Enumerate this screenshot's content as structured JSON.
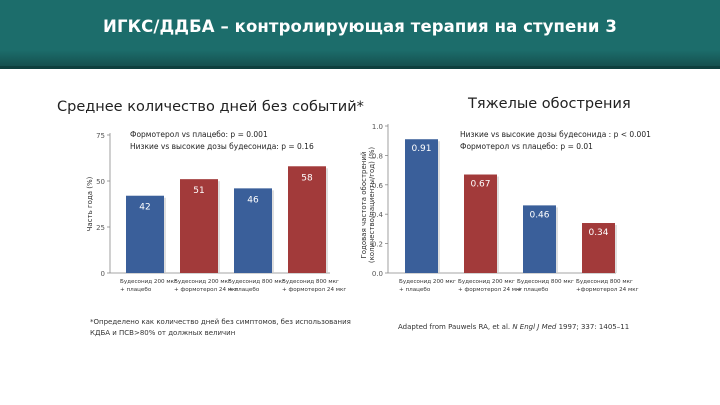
{
  "header": {
    "title": "ИГКС/ДДБА – контролирующая терапия на ступени 3",
    "color": "#1c6d6b"
  },
  "chart_data": [
    {
      "type": "bar",
      "title": "Среднее количество дней без событий*",
      "ylabel": "Часть года (%)",
      "ylim": [
        0,
        75
      ],
      "yticks": [
        0,
        25,
        50,
        75
      ],
      "grid": false,
      "categories": [
        [
          "Будесонид 200 мкг",
          "+ плацебо"
        ],
        [
          "Будесонид 200 мкг",
          "+ формотерол 24 мкг"
        ],
        [
          "Будесонид 800 мкг",
          "+ плацебо"
        ],
        [
          "Будесонид 800 мкг",
          "+ формотерол 24 мкг"
        ]
      ],
      "values": [
        42,
        51,
        46,
        58
      ],
      "data_labels": [
        "42",
        "51",
        "46",
        "58"
      ],
      "colors": [
        "#3a5f9a",
        "#a23a3a",
        "#3a5f9a",
        "#a23a3a"
      ],
      "annotations": [
        "Формотерол vs плацебо: p = 0.001",
        "Низкие vs высокие дозы будесонида: p = 0.16"
      ],
      "footnote": [
        "*Определено как количество дней без симптомов, без использования",
        "КДБА и ПСВ>80% от должных величин"
      ]
    },
    {
      "type": "bar",
      "title": "Тяжелые обострения",
      "ylabel": [
        "Годовая частота обострений",
        "(количество/пациенты/год) (%)"
      ],
      "ylim": [
        0,
        1.0
      ],
      "yticks": [
        0,
        0.2,
        0.4,
        0.6,
        0.8,
        1.0
      ],
      "grid": false,
      "categories": [
        [
          "Будесонид 200 мкг",
          "+ плацебо"
        ],
        [
          "Будесонид 200 мкг",
          "+ формотерол 24 мкг"
        ],
        [
          "Будесонид 800 мкг",
          "+ плацебо"
        ],
        [
          "Будесонид 800 мкг",
          "+формотерол 24 мкг"
        ]
      ],
      "values": [
        0.91,
        0.67,
        0.46,
        0.34
      ],
      "data_labels": [
        "0.91",
        "0.67",
        "0.46",
        "0.34"
      ],
      "colors": [
        "#3a5f9a",
        "#a23a3a",
        "#3a5f9a",
        "#a23a3a"
      ],
      "annotations": [
        "Низкие vs высокие дозы будесонида : p < 0.001",
        "Формотерол vs плацебо: p = 0.01"
      ],
      "source": {
        "prefix": "Adapted from Pauwels RA, et al. ",
        "journal": "N Engl J Med",
        "suffix": " 1997; 337: 1405–11"
      }
    }
  ]
}
